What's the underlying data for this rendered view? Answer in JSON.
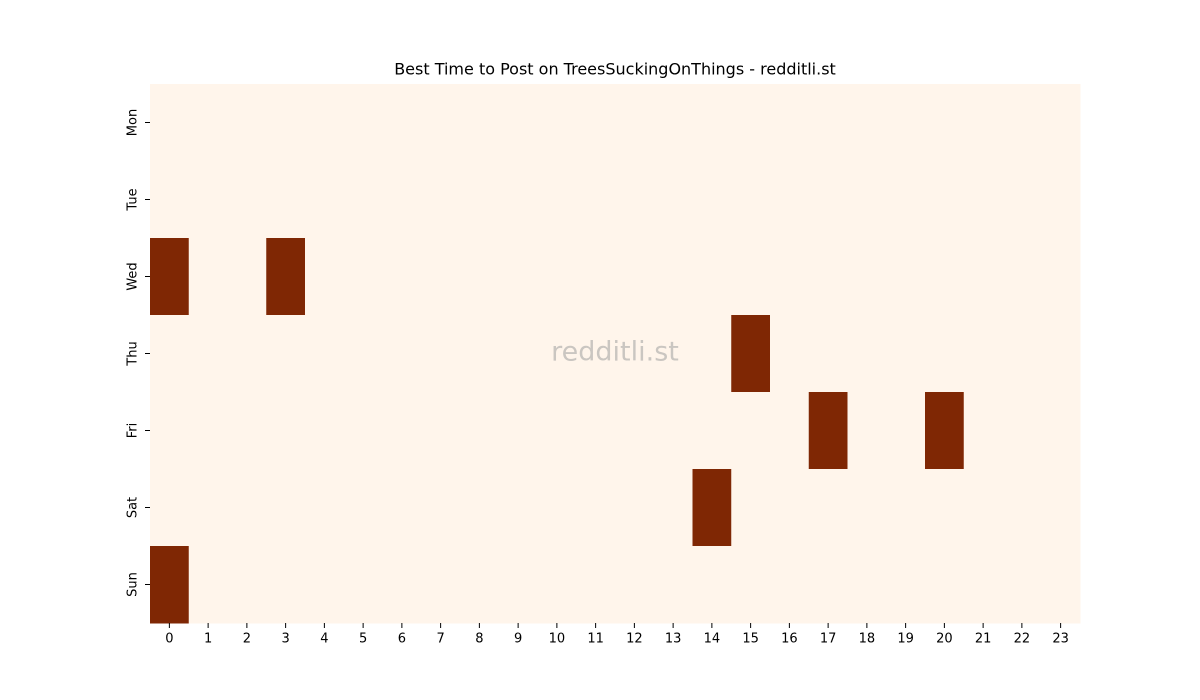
{
  "chart_data": {
    "type": "heatmap",
    "title": "Best Time to Post on TreesSuckingOnThings - redditli.st",
    "watermark": "redditli.st",
    "x": [
      0,
      1,
      2,
      3,
      4,
      5,
      6,
      7,
      8,
      9,
      10,
      11,
      12,
      13,
      14,
      15,
      16,
      17,
      18,
      19,
      20,
      21,
      22,
      23
    ],
    "y": [
      "Mon",
      "Tue",
      "Wed",
      "Thu",
      "Fri",
      "Sat",
      "Sun"
    ],
    "values": [
      [
        0,
        0,
        0,
        0,
        0,
        0,
        0,
        0,
        0,
        0,
        0,
        0,
        0,
        0,
        0,
        0,
        0,
        0,
        0,
        0,
        0,
        0,
        0,
        0
      ],
      [
        0,
        0,
        0,
        0,
        0,
        0,
        0,
        0,
        0,
        0,
        0,
        0,
        0,
        0,
        0,
        0,
        0,
        0,
        0,
        0,
        0,
        0,
        0,
        0
      ],
      [
        1,
        0,
        0,
        1,
        0,
        0,
        0,
        0,
        0,
        0,
        0,
        0,
        0,
        0,
        0,
        0,
        0,
        0,
        0,
        0,
        0,
        0,
        0,
        0
      ],
      [
        0,
        0,
        0,
        0,
        0,
        0,
        0,
        0,
        0,
        0,
        0,
        0,
        0,
        0,
        0,
        1,
        0,
        0,
        0,
        0,
        0,
        0,
        0,
        0
      ],
      [
        0,
        0,
        0,
        0,
        0,
        0,
        0,
        0,
        0,
        0,
        0,
        0,
        0,
        0,
        0,
        0,
        0,
        1,
        0,
        0,
        1,
        0,
        0,
        0
      ],
      [
        0,
        0,
        0,
        0,
        0,
        0,
        0,
        0,
        0,
        0,
        0,
        0,
        0,
        0,
        1,
        0,
        0,
        0,
        0,
        0,
        0,
        0,
        0,
        0
      ],
      [
        1,
        0,
        0,
        0,
        0,
        0,
        0,
        0,
        0,
        0,
        0,
        0,
        0,
        0,
        0,
        0,
        0,
        0,
        0,
        0,
        0,
        0,
        0,
        0
      ]
    ],
    "colors": [
      "#fff5eb",
      "#7f2704"
    ]
  }
}
